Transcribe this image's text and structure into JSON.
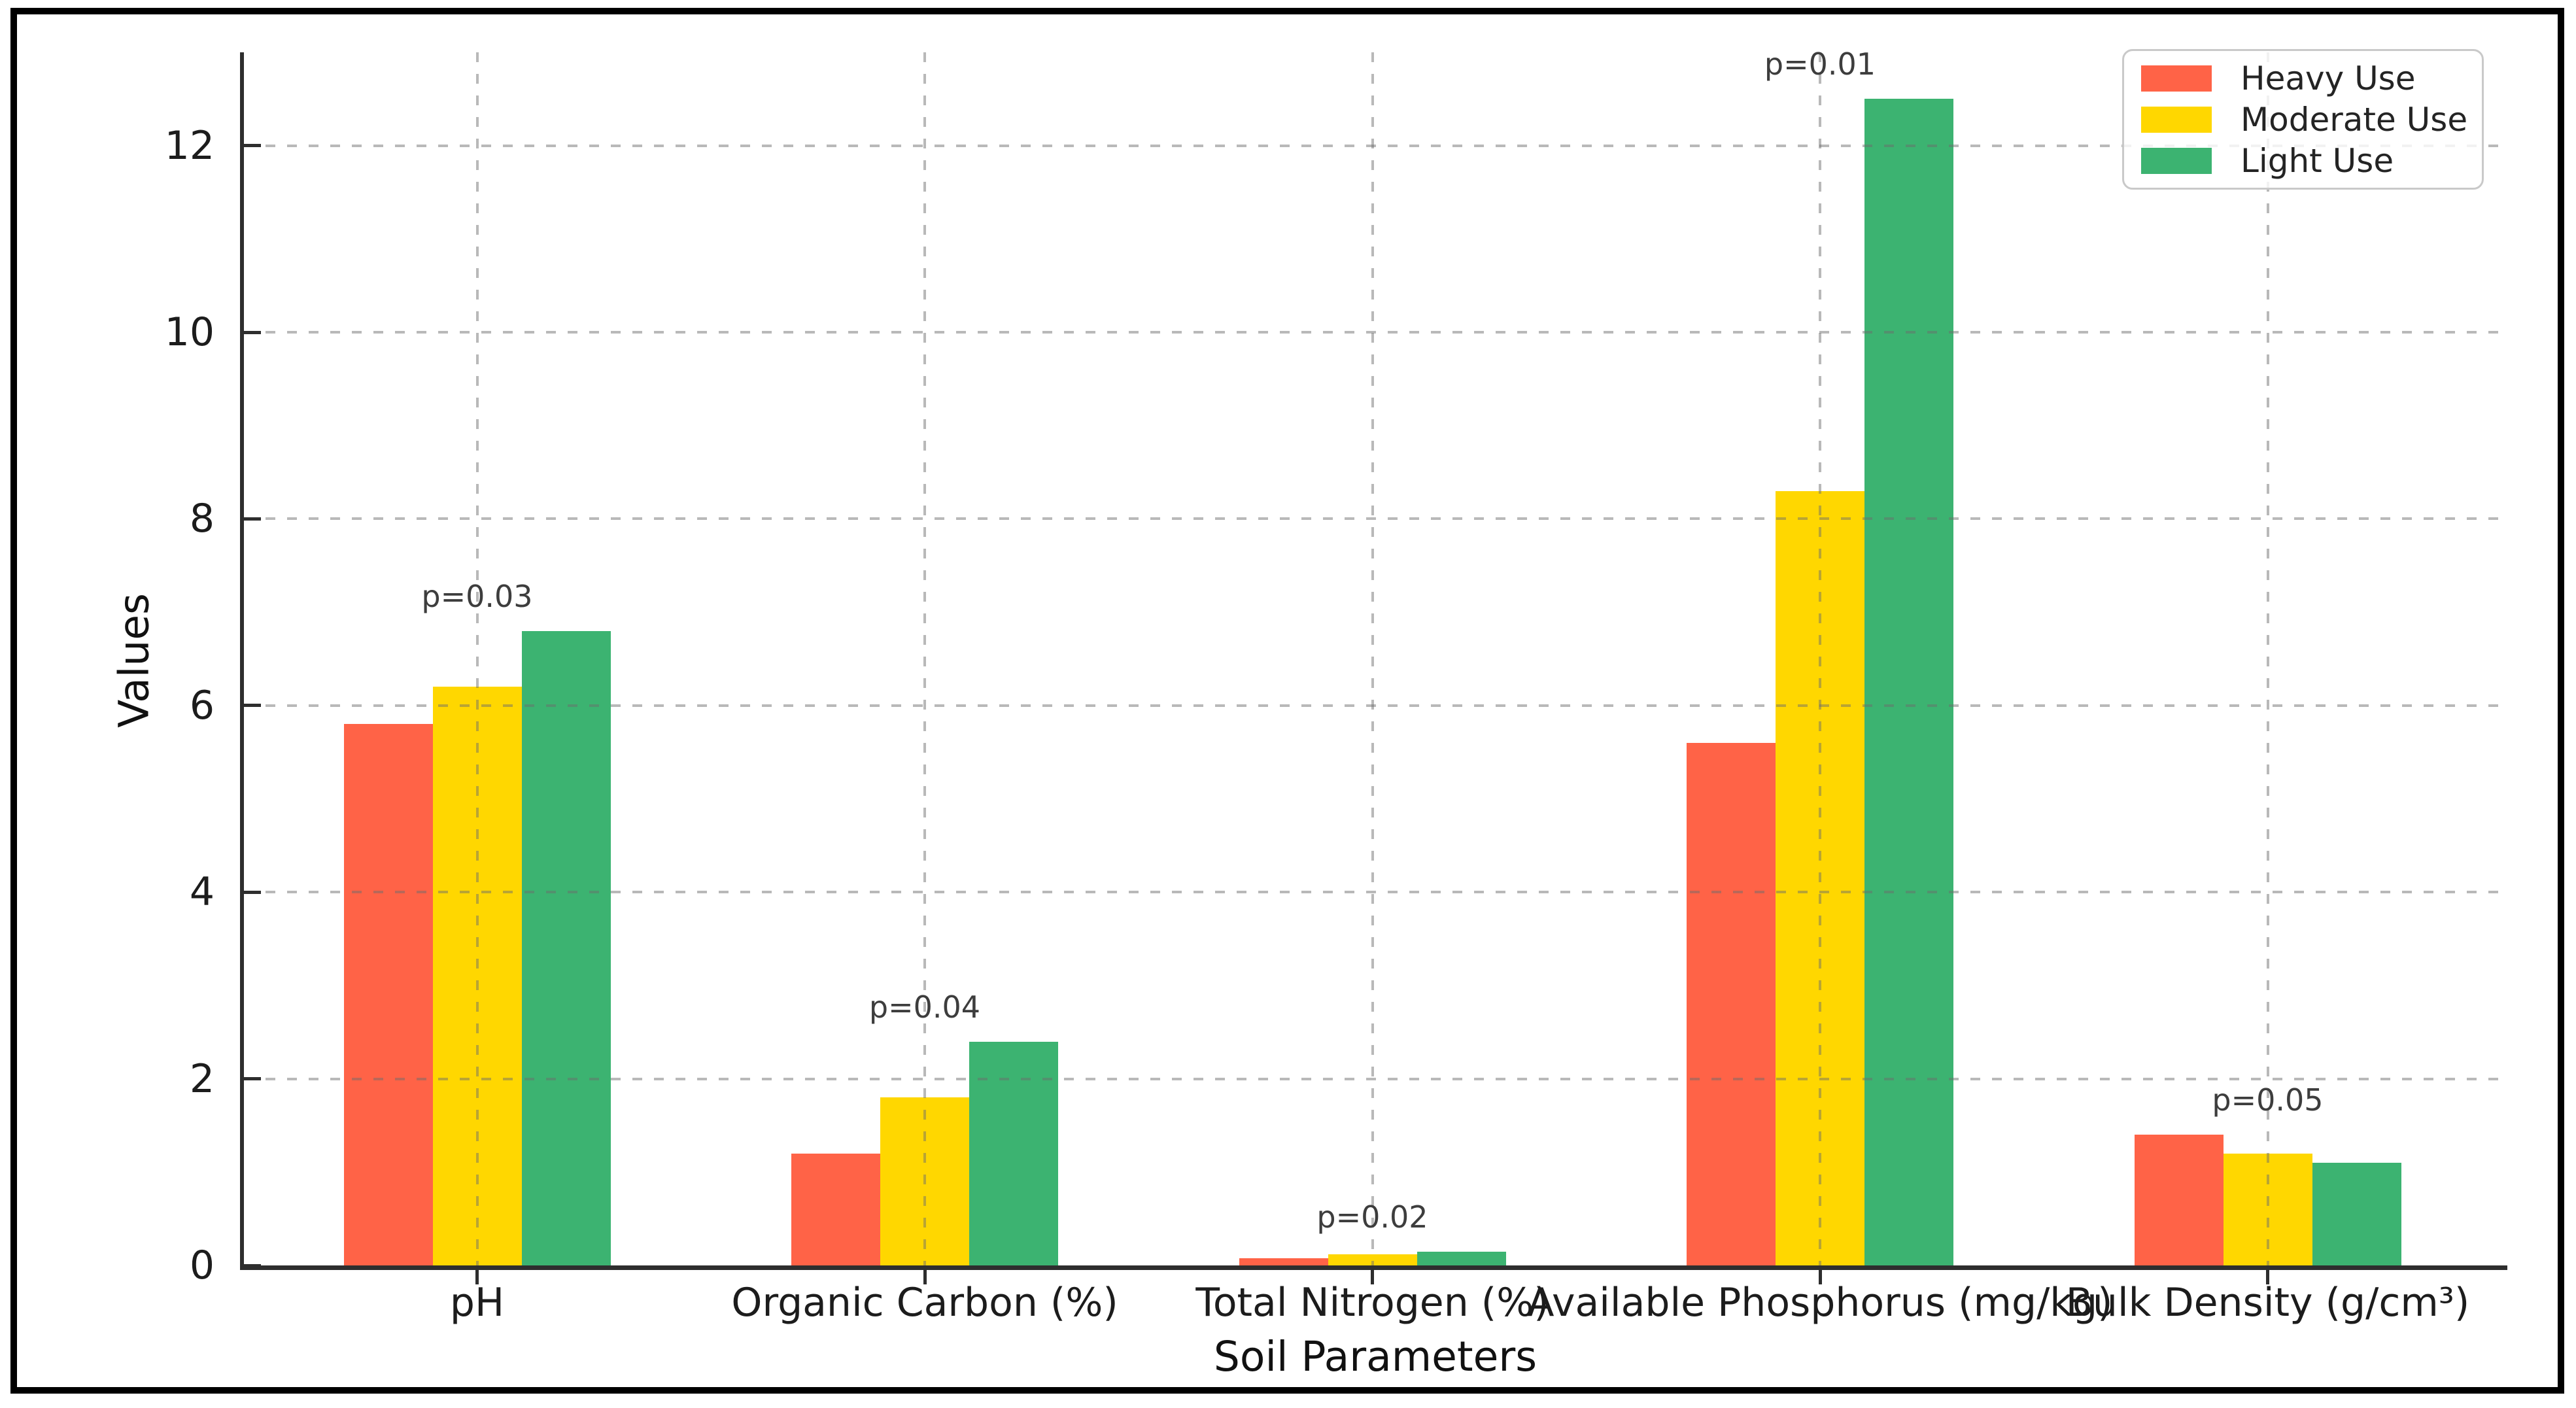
{
  "chart_data": {
    "type": "bar",
    "title": "",
    "xlabel": "Soil Parameters",
    "ylabel": "Values",
    "categories": [
      "pH",
      "Organic Carbon (%)",
      "Total Nitrogen (%)",
      "Available Phosphorus (mg/kg)",
      "Bulk Density (g/cm³)"
    ],
    "series": [
      {
        "name": "Heavy Use",
        "color": "#FF6347",
        "values": [
          5.8,
          1.2,
          0.08,
          5.6,
          1.4
        ]
      },
      {
        "name": "Moderate Use",
        "color": "#FFD700",
        "values": [
          6.2,
          1.8,
          0.12,
          8.3,
          1.2
        ]
      },
      {
        "name": "Light Use",
        "color": "#3CB371",
        "values": [
          6.8,
          2.4,
          0.15,
          12.5,
          1.1
        ]
      }
    ],
    "annotations": [
      "p=0.03",
      "p=0.04",
      "p=0.02",
      "p=0.01",
      "p=0.05"
    ],
    "yticks": [
      0,
      2,
      4,
      6,
      8,
      10,
      12
    ],
    "ylim": [
      0,
      13
    ],
    "grid": {
      "style": "dashed",
      "on": true
    },
    "legend": {
      "position": "upper right",
      "labels": [
        "Heavy Use",
        "Moderate Use",
        "Light Use"
      ]
    },
    "colors": {
      "spine": "#2e2e2e",
      "grid": "#6c6c6c",
      "annotation": "#3d3d3d",
      "tick_label": "#1c1c1c"
    }
  }
}
